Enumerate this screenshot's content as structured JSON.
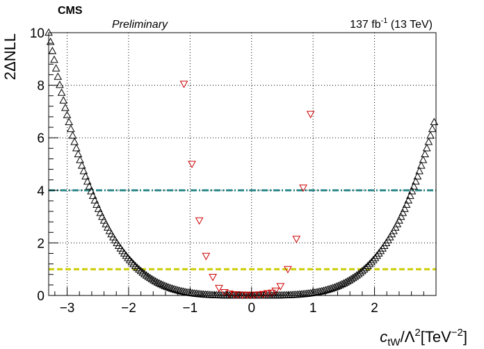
{
  "header": {
    "experiment": "CMS",
    "status": "Preliminary",
    "lumi_prefix": "137 fb",
    "lumi_exp": "-1",
    "lumi_suffix": " (13 TeV)"
  },
  "chart_data": {
    "type": "scatter",
    "title": "",
    "ylabel": "2ΔNLL",
    "xlabel_parts": {
      "var": "c",
      "sub": "tW",
      "mid": "/Λ",
      "sup": "2",
      "unit": "[TeV",
      "unit_sup": "−2",
      "unit_close": "]"
    },
    "xlim": [
      -3.3,
      3.0
    ],
    "ylim": [
      0,
      10
    ],
    "xticks": [
      -3,
      -2,
      -1,
      0,
      1,
      2
    ],
    "xtick_labels": [
      "−3",
      "−2",
      "−1",
      "0",
      "1",
      "2"
    ],
    "yticks": [
      0,
      2,
      4,
      6,
      8,
      10
    ],
    "ytick_labels": [
      "0",
      "2",
      "4",
      "6",
      "8",
      "10"
    ],
    "grid": true,
    "reference_lines": [
      {
        "y": 4,
        "color": "#2e8b8b",
        "style": "dash-dot"
      },
      {
        "y": 1,
        "color": "#cccc00",
        "style": "dashed"
      }
    ],
    "series": [
      {
        "marker": "triangle-up-open",
        "color": "#000000",
        "curve": {
          "form": "a*x^2 + b*x^4",
          "a": 0.0205,
          "b": 0.0825,
          "x_start": -3.3,
          "x_end": 2.99,
          "step": 0.03
        }
      },
      {
        "marker": "triangle-down-open",
        "color": "#cc0000",
        "x": [
          -1.1,
          -0.97,
          -0.85,
          -0.74,
          -0.63,
          -0.53,
          -0.44,
          -0.36,
          -0.28,
          -0.22,
          -0.15,
          -0.08,
          -0.02,
          0.05,
          0.12,
          0.19,
          0.26,
          0.33,
          0.39,
          0.47,
          0.59,
          0.73,
          0.84,
          0.96
        ],
        "y": [
          8.05,
          5.0,
          2.85,
          1.5,
          0.7,
          0.28,
          0.12,
          0.07,
          0.04,
          0.03,
          0.02,
          0.02,
          0.01,
          0.02,
          0.03,
          0.05,
          0.08,
          0.1,
          0.18,
          0.35,
          1.0,
          2.15,
          4.1,
          6.9
        ]
      }
    ]
  }
}
